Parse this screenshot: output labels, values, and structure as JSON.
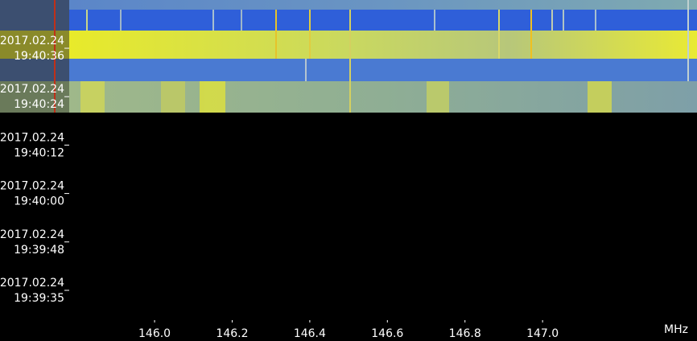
{
  "chart_data": {
    "type": "waterfall",
    "x_label": "MHz",
    "xlim": [
      145.78,
      147.398
    ],
    "xticks": [
      {
        "value": 146,
        "label": "146.0"
      },
      146.2,
      146.4,
      146.6,
      146.8,
      {
        "value": 147,
        "label": "147.0"
      }
    ],
    "time_labels": [
      {
        "date": "2017.02.24",
        "time": "19:40:36"
      },
      {
        "date": "2017.02.24",
        "time": "19:40:24"
      },
      {
        "date": "2017.02.24",
        "time": "19:40:12"
      },
      {
        "date": "2017.02.24",
        "time": "19:40:00"
      },
      {
        "date": "2017.02.24",
        "time": "19:39:48"
      },
      {
        "date": "2017.02.24",
        "time": "19:39:35"
      }
    ]
  }
}
